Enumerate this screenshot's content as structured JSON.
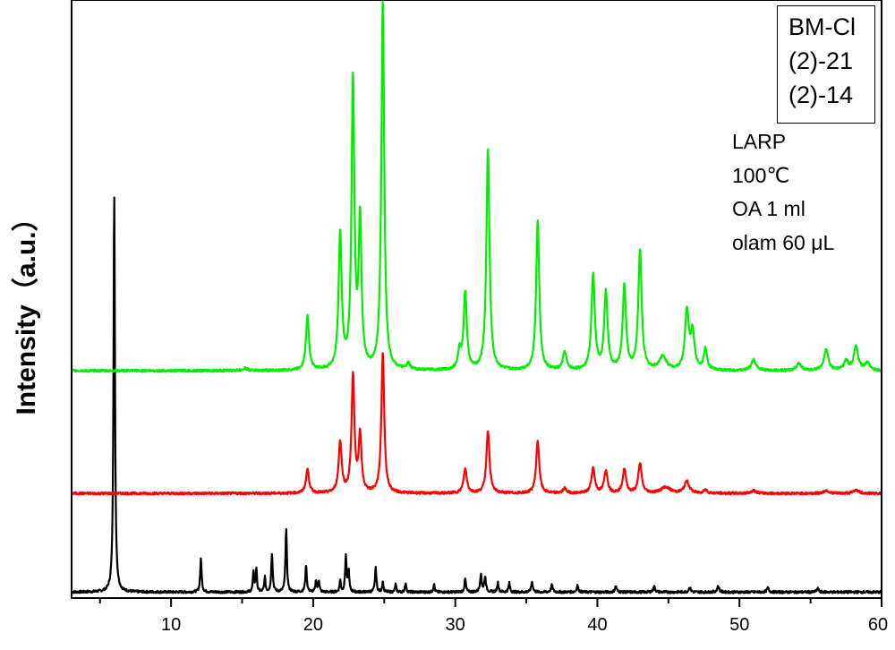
{
  "chart_data": {
    "type": "line",
    "title": "",
    "xlabel": "",
    "ylabel": "Intensity（a.u.）",
    "xlim": [
      3,
      60
    ],
    "ylim": [
      0,
      1
    ],
    "x_ticks": [
      "10",
      "20",
      "30",
      "40",
      "50",
      "60"
    ],
    "grid": false,
    "y_ticks_shown": false,
    "legend": {
      "placement": "top-right",
      "entries": [
        "BM-Cl",
        "(2)-21",
        "(2)-14"
      ]
    },
    "annotations": [
      "LARP",
      "100℃",
      "OA 1 ml",
      "olam 60 μL"
    ],
    "series": [
      {
        "color": "#000000",
        "baseline": 0.01,
        "peaks": [
          [
            6.0,
            0.665,
            0.06
          ],
          [
            12.1,
            0.055,
            0.06
          ],
          [
            15.8,
            0.035,
            0.05
          ],
          [
            16.0,
            0.04,
            0.05
          ],
          [
            16.6,
            0.025,
            0.05
          ],
          [
            17.1,
            0.065,
            0.06
          ],
          [
            18.1,
            0.105,
            0.06
          ],
          [
            19.5,
            0.045,
            0.06
          ],
          [
            20.2,
            0.02,
            0.05
          ],
          [
            20.4,
            0.02,
            0.05
          ],
          [
            21.9,
            0.02,
            0.05
          ],
          [
            22.3,
            0.06,
            0.06
          ],
          [
            22.5,
            0.035,
            0.05
          ],
          [
            24.4,
            0.04,
            0.06
          ],
          [
            24.9,
            0.018,
            0.05
          ],
          [
            25.8,
            0.013,
            0.05
          ],
          [
            26.5,
            0.016,
            0.05
          ],
          [
            28.5,
            0.014,
            0.05
          ],
          [
            30.7,
            0.022,
            0.06
          ],
          [
            31.8,
            0.028,
            0.07
          ],
          [
            32.1,
            0.025,
            0.07
          ],
          [
            33.0,
            0.016,
            0.06
          ],
          [
            33.8,
            0.015,
            0.06
          ],
          [
            35.4,
            0.017,
            0.07
          ],
          [
            36.8,
            0.012,
            0.07
          ],
          [
            38.6,
            0.011,
            0.07
          ],
          [
            41.3,
            0.01,
            0.07
          ],
          [
            44.0,
            0.009,
            0.08
          ],
          [
            46.5,
            0.008,
            0.08
          ],
          [
            48.5,
            0.01,
            0.08
          ],
          [
            52.0,
            0.007,
            0.08
          ],
          [
            55.5,
            0.006,
            0.08
          ]
        ]
      },
      {
        "color": "#ff0000",
        "baseline": 0.175,
        "peaks": [
          [
            19.6,
            0.04,
            0.13
          ],
          [
            21.9,
            0.085,
            0.13
          ],
          [
            22.8,
            0.195,
            0.12
          ],
          [
            23.3,
            0.095,
            0.12
          ],
          [
            24.9,
            0.235,
            0.12
          ],
          [
            30.7,
            0.04,
            0.14
          ],
          [
            32.3,
            0.105,
            0.13
          ],
          [
            35.8,
            0.088,
            0.13
          ],
          [
            37.7,
            0.008,
            0.14
          ],
          [
            39.7,
            0.042,
            0.14
          ],
          [
            40.6,
            0.038,
            0.14
          ],
          [
            41.9,
            0.04,
            0.14
          ],
          [
            43.0,
            0.05,
            0.14
          ],
          [
            44.8,
            0.01,
            0.4
          ],
          [
            46.3,
            0.02,
            0.2
          ],
          [
            47.6,
            0.006,
            0.14
          ],
          [
            51.0,
            0.005,
            0.2
          ],
          [
            56.1,
            0.005,
            0.2
          ],
          [
            58.2,
            0.006,
            0.2
          ]
        ]
      },
      {
        "color": "#00ee00",
        "baseline": 0.38,
        "peaks": [
          [
            15.2,
            0.004,
            0.2
          ],
          [
            19.6,
            0.09,
            0.13
          ],
          [
            21.9,
            0.225,
            0.13
          ],
          [
            22.8,
            0.48,
            0.12
          ],
          [
            23.3,
            0.245,
            0.12
          ],
          [
            24.9,
            0.615,
            0.12
          ],
          [
            26.7,
            0.01,
            0.14
          ],
          [
            30.3,
            0.03,
            0.13
          ],
          [
            30.7,
            0.13,
            0.13
          ],
          [
            32.3,
            0.37,
            0.13
          ],
          [
            35.8,
            0.25,
            0.13
          ],
          [
            37.7,
            0.03,
            0.15
          ],
          [
            39.7,
            0.16,
            0.14
          ],
          [
            40.6,
            0.13,
            0.14
          ],
          [
            41.9,
            0.14,
            0.14
          ],
          [
            43.0,
            0.2,
            0.14
          ],
          [
            44.6,
            0.022,
            0.3
          ],
          [
            46.3,
            0.098,
            0.16
          ],
          [
            46.7,
            0.06,
            0.16
          ],
          [
            47.6,
            0.035,
            0.14
          ],
          [
            51.0,
            0.018,
            0.2
          ],
          [
            54.2,
            0.012,
            0.2
          ],
          [
            56.1,
            0.035,
            0.18
          ],
          [
            57.5,
            0.015,
            0.2
          ],
          [
            58.2,
            0.04,
            0.18
          ],
          [
            59.0,
            0.012,
            0.2
          ]
        ]
      }
    ]
  }
}
